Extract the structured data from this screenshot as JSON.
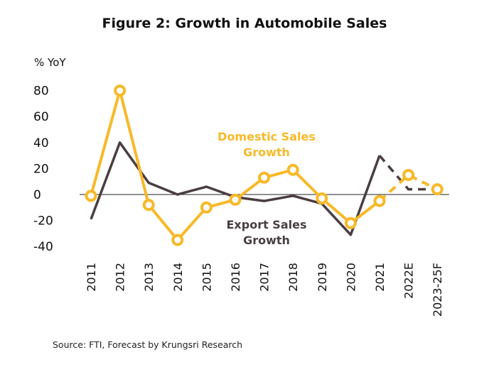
{
  "chart_data": {
    "type": "line",
    "title": "Figure 2: Growth in Automobile Sales",
    "ylabel": "% YoY",
    "xlabel": "",
    "categories": [
      "2011",
      "2012",
      "2013",
      "2014",
      "2015",
      "2016",
      "2017",
      "2018",
      "2019",
      "2020",
      "2021",
      "2022E",
      "2023-25F"
    ],
    "yticks": [
      80,
      60,
      40,
      20,
      0,
      -20,
      -40
    ],
    "ylim": [
      -40,
      80
    ],
    "grid": false,
    "legend": "none",
    "annotations": [
      {
        "series": "domestic",
        "lines": [
          "Domestic Sales",
          "Growth"
        ]
      },
      {
        "series": "export",
        "lines": [
          "Export Sales",
          "Growth"
        ]
      }
    ],
    "series": [
      {
        "key": "domestic",
        "color": "#f7b928",
        "markers": true,
        "forecast_from_index": 10,
        "values": [
          -1,
          80,
          -8,
          -35,
          -10,
          -4,
          13,
          19,
          -3,
          -22,
          -5,
          15,
          4
        ]
      },
      {
        "key": "export",
        "color": "#4a3e40",
        "markers": false,
        "forecast_from_index": 10,
        "values": [
          -19,
          40,
          9,
          0,
          6,
          -2,
          -5,
          -1,
          -7,
          -31,
          30,
          4,
          4
        ]
      }
    ]
  },
  "source": "Source: FTI, Forecast by Krungsri Research"
}
